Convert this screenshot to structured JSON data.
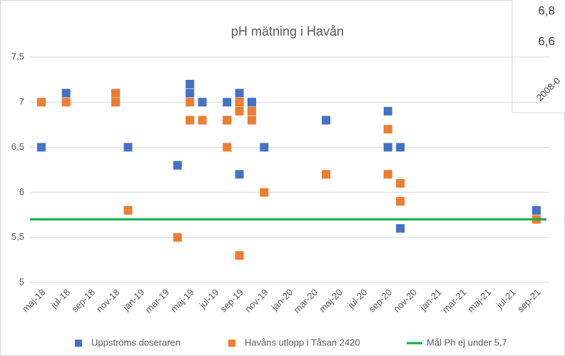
{
  "chart_data": [
    {
      "type": "scatter",
      "title": "pH mätning i Havån",
      "xticks": [
        {
          "value": "2018-05",
          "label": "maj-18"
        },
        {
          "value": "2018-07",
          "label": "jul-18"
        },
        {
          "value": "2018-09",
          "label": "sep-18"
        },
        {
          "value": "2018-11",
          "label": "nov-18"
        },
        {
          "value": "2019-01",
          "label": "jan-19"
        },
        {
          "value": "2019-03",
          "label": "mar-19"
        },
        {
          "value": "2019-05",
          "label": "maj-19"
        },
        {
          "value": "2019-07",
          "label": "jul-19"
        },
        {
          "value": "2019-09",
          "label": "sep-19"
        },
        {
          "value": "2019-11",
          "label": "nov-19"
        },
        {
          "value": "2020-01",
          "label": "jan-20"
        },
        {
          "value": "2020-03",
          "label": "mar-20"
        },
        {
          "value": "2020-05",
          "label": "maj-20"
        },
        {
          "value": "2020-07",
          "label": "jul-20"
        },
        {
          "value": "2020-09",
          "label": "sep-20"
        },
        {
          "value": "2020-11",
          "label": "nov-20"
        },
        {
          "value": "2021-01",
          "label": "jan-21"
        },
        {
          "value": "2021-03",
          "label": "mar-21"
        },
        {
          "value": "2021-05",
          "label": "maj-21"
        },
        {
          "value": "2021-07",
          "label": "jul-21"
        },
        {
          "value": "2021-09",
          "label": "sep-21"
        }
      ],
      "ylim": [
        5,
        7.5
      ],
      "yticks": [
        {
          "value": 5,
          "label": "5"
        },
        {
          "value": 5.5,
          "label": "5,5"
        },
        {
          "value": 6,
          "label": "6"
        },
        {
          "value": 6.5,
          "label": "6,5"
        },
        {
          "value": 7,
          "label": "7"
        },
        {
          "value": 7.5,
          "label": "7,5"
        }
      ],
      "grid": true,
      "legend": "bottom",
      "series": [
        {
          "name": "Uppströms doseraren",
          "color": "#4472c4",
          "kind": "marker",
          "x": [
            "2018-05",
            "2018-07",
            "2018-11",
            "2018-11",
            "2018-12",
            "2019-04",
            "2019-05",
            "2019-05",
            "2019-06",
            "2019-08",
            "2019-08",
            "2019-09",
            "2019-09",
            "2019-09",
            "2019-10",
            "2019-10",
            "2019-11",
            "2020-04",
            "2020-09",
            "2020-09",
            "2020-10",
            "2020-10",
            "2021-09"
          ],
          "values": [
            6.5,
            7.1,
            7.0,
            7.1,
            6.5,
            6.3,
            7.2,
            7.1,
            7.0,
            6.8,
            7.0,
            6.2,
            7.0,
            7.1,
            7.0,
            7.0,
            6.5,
            6.8,
            6.9,
            6.5,
            6.5,
            5.6,
            5.8
          ]
        },
        {
          "name": "Havåns utlopp i Tåsan 2420",
          "color": "#ed7d31",
          "kind": "marker",
          "x": [
            "2018-05",
            "2018-07",
            "2018-11",
            "2018-11",
            "2018-12",
            "2019-04",
            "2019-05",
            "2019-05",
            "2019-06",
            "2019-08",
            "2019-08",
            "2019-09",
            "2019-09",
            "2019-09",
            "2019-10",
            "2019-10",
            "2019-11",
            "2020-04",
            "2020-09",
            "2020-09",
            "2020-10",
            "2020-10",
            "2021-09"
          ],
          "values": [
            7.0,
            7.0,
            7.0,
            7.1,
            5.8,
            5.5,
            7.0,
            6.8,
            6.8,
            6.5,
            6.8,
            5.3,
            6.9,
            7.0,
            6.8,
            6.9,
            6.0,
            6.2,
            6.7,
            6.2,
            6.1,
            5.9,
            5.7
          ]
        },
        {
          "name": "Mål Ph ej under 5,7",
          "color": "#00b050",
          "kind": "line",
          "x": [
            "2018-05",
            "2021-09"
          ],
          "values": [
            5.7,
            5.7
          ]
        }
      ]
    },
    {
      "type": "fragment",
      "yticks": [
        {
          "value": 6.8,
          "label": "6,8"
        },
        {
          "value": 6.6,
          "label": "6,6"
        }
      ],
      "xtick_labels": [
        "2008-0"
      ]
    }
  ]
}
